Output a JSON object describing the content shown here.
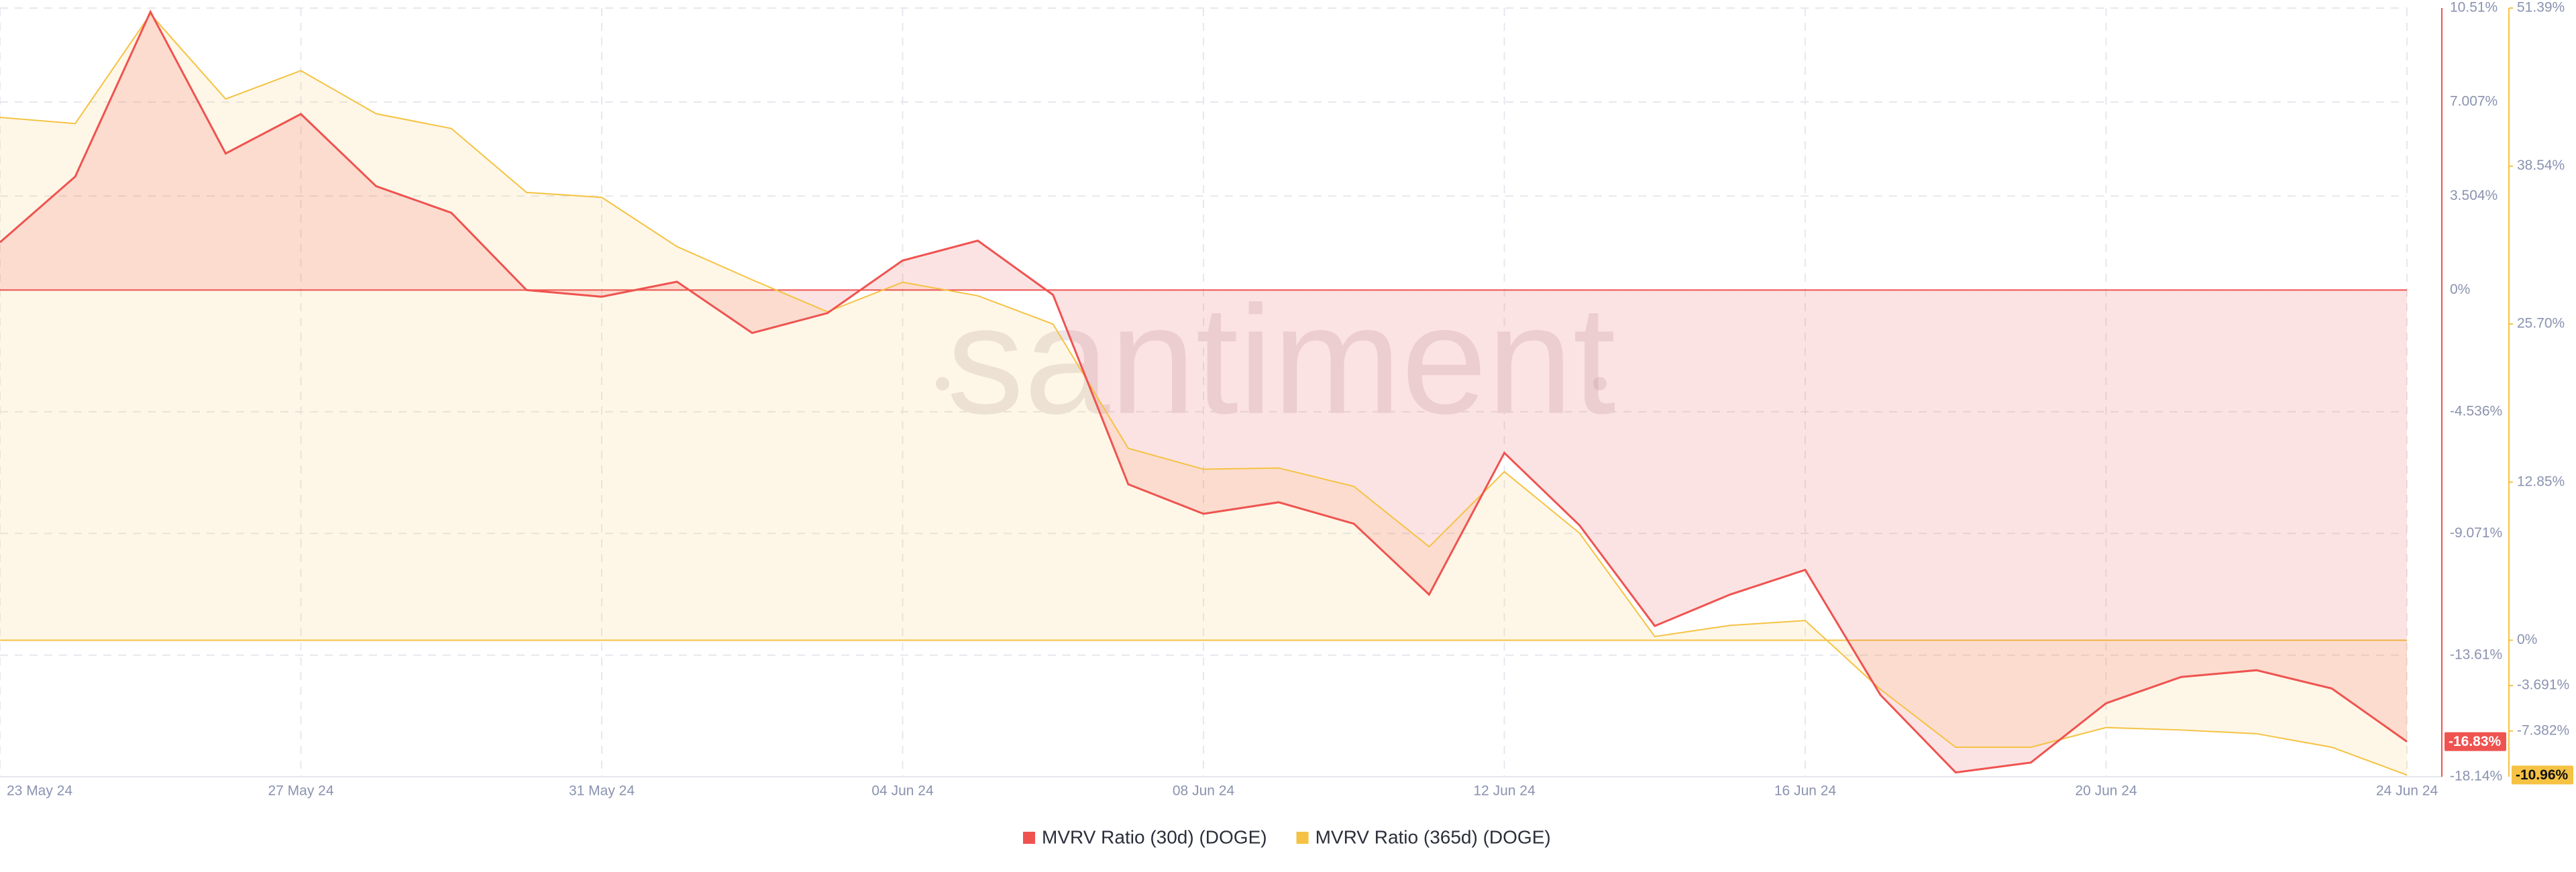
{
  "chart_data": {
    "type": "line",
    "watermark": "santiment",
    "categories": [
      "23 May 24",
      null,
      null,
      null,
      "27 May 24",
      null,
      null,
      null,
      "31 May 24",
      null,
      null,
      null,
      "04 Jun 24",
      null,
      null,
      null,
      "08 Jun 24",
      null,
      null,
      null,
      "12 Jun 24",
      null,
      null,
      null,
      "16 Jun 24",
      null,
      null,
      null,
      "20 Jun 24",
      null,
      null,
      null,
      "24 Jun 24"
    ],
    "series": [
      {
        "name": "MVRV Ratio (30d) (DOGE)",
        "color": "#ef5350",
        "axis": "y",
        "values": [
          1.78,
          4.23,
          10.37,
          5.09,
          6.56,
          3.87,
          2.88,
          0,
          -0.25,
          0.31,
          -1.6,
          -0.86,
          1.1,
          1.84,
          -0.18,
          -7.24,
          -8.34,
          -7.91,
          -8.71,
          -11.35,
          -6.07,
          -8.77,
          -12.52,
          -11.35,
          -10.43,
          -15.09,
          -17.98,
          -17.61,
          -15.4,
          -14.42,
          -14.17,
          -14.85,
          -16.83
        ],
        "value_labels": [
          null,
          null,
          null,
          null,
          null,
          null,
          null,
          null,
          null,
          null,
          null,
          null,
          null,
          null,
          null,
          null,
          null,
          null,
          null,
          null,
          null,
          null,
          null,
          null,
          null,
          null,
          null,
          null,
          null,
          null,
          null,
          null,
          "-16.83%"
        ]
      },
      {
        "name": "MVRV Ratio (365d) (DOGE)",
        "color": "#f5c243",
        "axis": "y2",
        "values": [
          42.5,
          42.0,
          50.9,
          44.0,
          46.3,
          42.8,
          41.6,
          36.4,
          36.0,
          32.0,
          29.3,
          26.7,
          29.1,
          28.0,
          25.7,
          15.6,
          13.9,
          14.0,
          12.5,
          7.6,
          13.7,
          8.7,
          0.3,
          1.2,
          1.6,
          -4.0,
          -8.7,
          -8.7,
          -7.1,
          -7.3,
          -7.6,
          -8.7,
          -10.96
        ],
        "value_labels": [
          null,
          null,
          null,
          null,
          null,
          null,
          null,
          null,
          null,
          null,
          null,
          null,
          null,
          null,
          null,
          null,
          null,
          null,
          null,
          null,
          null,
          null,
          null,
          null,
          null,
          null,
          null,
          null,
          null,
          null,
          null,
          null,
          "-10.96%"
        ]
      }
    ],
    "ylim": [
      -18.14,
      10.51
    ],
    "yticks": [
      {
        "value": 10.51,
        "label": "10.51%"
      },
      {
        "value": 7.007,
        "label": "7.007%"
      },
      {
        "value": 3.504,
        "label": "3.504%"
      },
      {
        "value": 0,
        "label": "0%"
      },
      {
        "value": -4.536,
        "label": "-4.536%"
      },
      {
        "value": -9.071,
        "label": "-9.071%"
      },
      {
        "value": -13.61,
        "label": "-13.61%"
      },
      {
        "value": -18.14,
        "label": "-18.14%"
      }
    ],
    "y2lim": [
      -11.1,
      51.39
    ],
    "y2ticks": [
      {
        "value": 51.39,
        "label": "51.39%"
      },
      {
        "value": 38.54,
        "label": "38.54%"
      },
      {
        "value": 25.7,
        "label": "25.70%"
      },
      {
        "value": 12.85,
        "label": "12.85%"
      },
      {
        "value": 0,
        "label": "0%"
      },
      {
        "value": -3.691,
        "label": "-3.691%"
      },
      {
        "value": -7.382,
        "label": "-7.382%"
      }
    ],
    "grid": true
  }
}
